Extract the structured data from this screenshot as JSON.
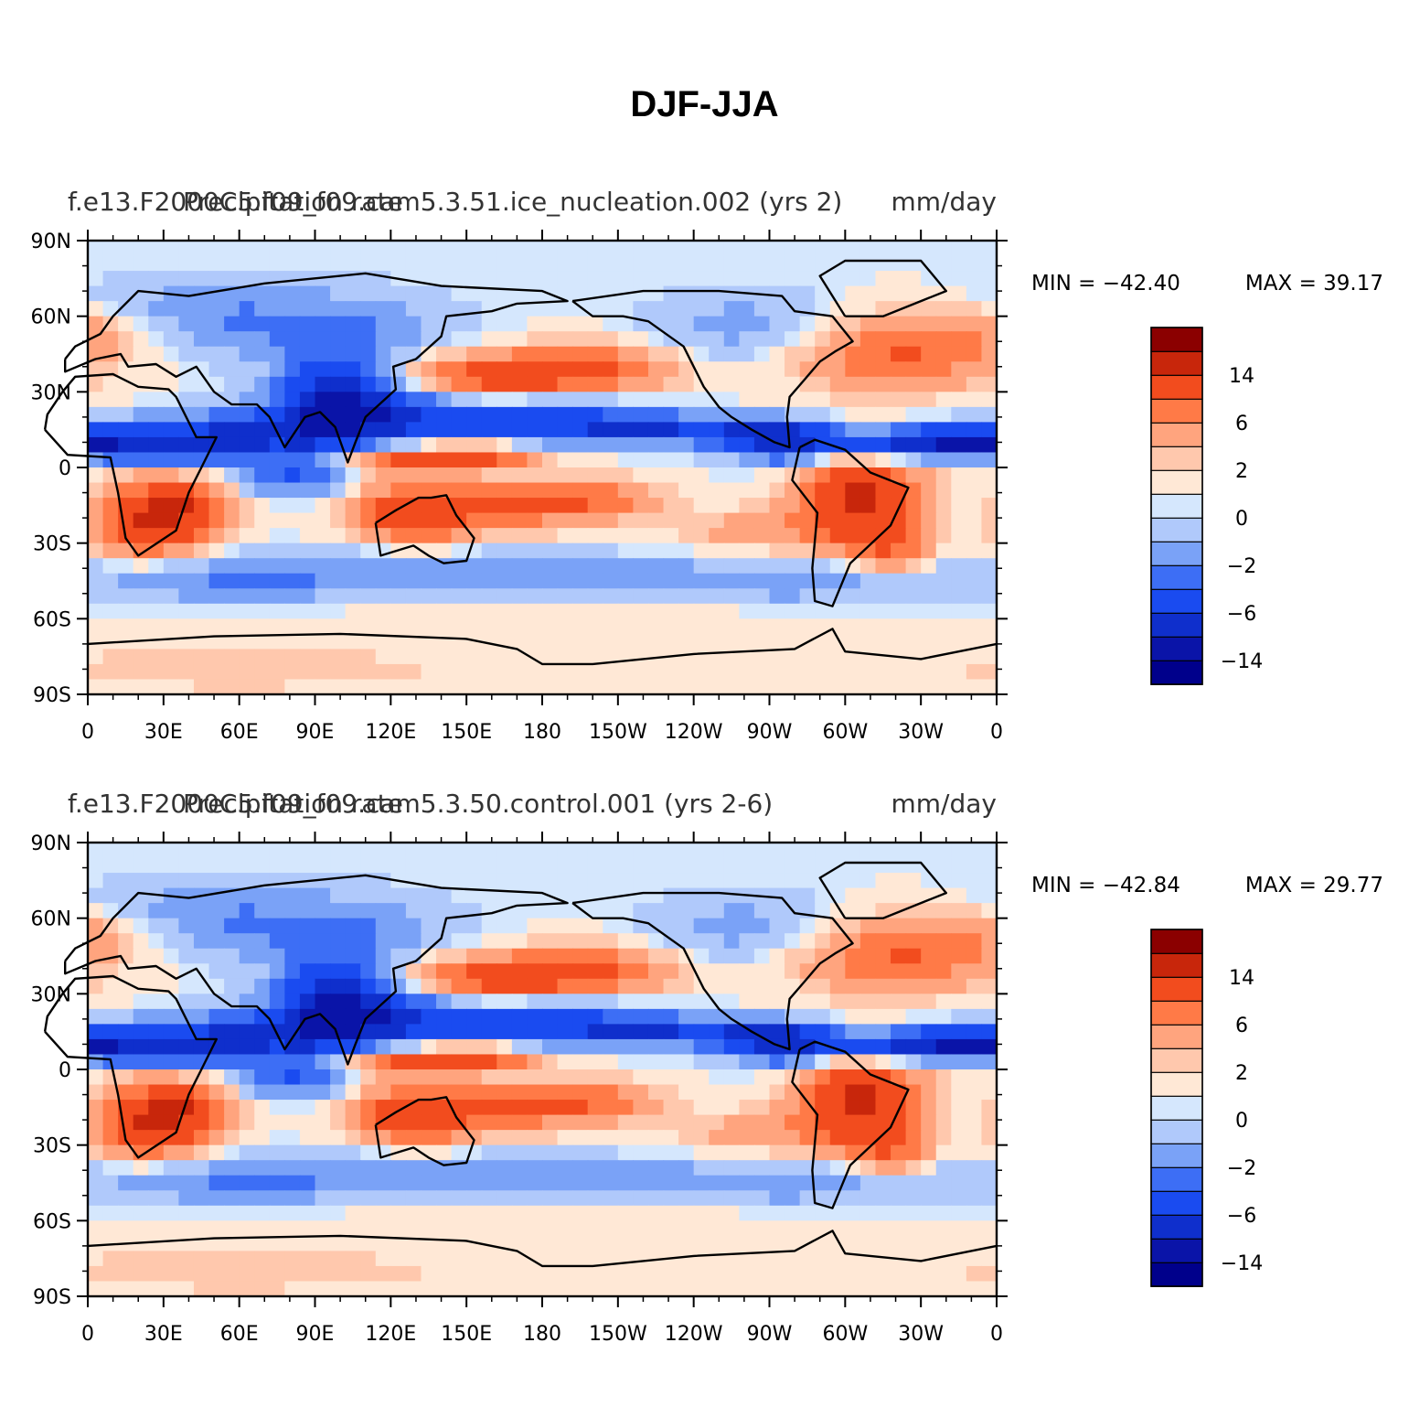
{
  "figure_title": "DJF-JJA",
  "colors": {
    "palette": [
      "#00008b",
      "#0a14a8",
      "#0f2fcc",
      "#1a4bf0",
      "#3d6ef5",
      "#7aa2f7",
      "#b0c9fb",
      "#d5e7fd",
      "#ffe8d6",
      "#ffc8ad",
      "#ffa47e",
      "#ff7a47",
      "#f24c1e",
      "#c8260b",
      "#8b0000"
    ],
    "coast": "#000000"
  },
  "chart_data": [
    {
      "type": "contour_map",
      "left_title": "f.e13.F2000C5.f09_f09.cam5.3.51.ice_nucleation.002 (yrs 2)",
      "center_title": "Precipitation rate",
      "right_title": "mm/day",
      "min_label": "MIN = −42.40",
      "max_label": "MAX =   39.17",
      "min": -42.4,
      "max": 39.17,
      "colorbar_labels": [
        "14",
        "6",
        "2",
        "0",
        "−2",
        "−6",
        "−14"
      ],
      "lat_ticks": [
        "90N",
        "60N",
        "30N",
        "0",
        "30S",
        "60S",
        "90S"
      ],
      "lon_ticks": [
        "0",
        "30E",
        "60E",
        "90E",
        "120E",
        "150E",
        "180",
        "150W",
        "120W",
        "90W",
        "60W",
        "30W",
        "0"
      ],
      "lat_range": [
        -90,
        90
      ],
      "lon_range": [
        0,
        360
      ]
    },
    {
      "type": "contour_map",
      "left_title": "f.e13.F2000C5.f09_f09.cam5.3.50.control.001 (yrs 2-6)",
      "center_title": "Precipitation rate",
      "right_title": "mm/day",
      "min_label": "MIN = −42.84",
      "max_label": "MAX =   29.77",
      "min": -42.84,
      "max": 29.77,
      "colorbar_labels": [
        "14",
        "6",
        "2",
        "0",
        "−2",
        "−6",
        "−14"
      ],
      "lat_ticks": [
        "90N",
        "60N",
        "30N",
        "0",
        "30S",
        "60S",
        "90S"
      ],
      "lon_ticks": [
        "0",
        "30E",
        "60E",
        "90E",
        "120E",
        "150E",
        "180",
        "150W",
        "120W",
        "90W",
        "60W",
        "30W",
        "0"
      ],
      "lat_range": [
        -90,
        90
      ],
      "lon_range": [
        0,
        360
      ]
    }
  ]
}
